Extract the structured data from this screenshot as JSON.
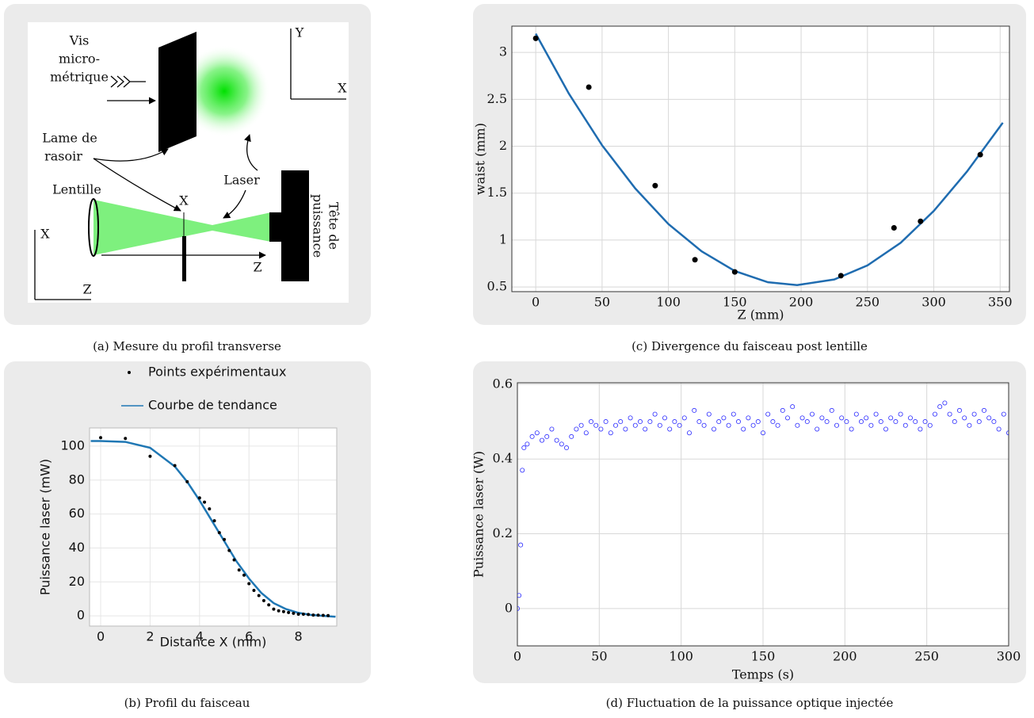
{
  "figure": {
    "captions": [
      "(a) Mesure du profil transverse",
      "(c) Divergence du faisceau post lentille",
      "(b) Profil du faisceau",
      "(d) Fluctuation de la puissance optique injectée"
    ],
    "diagram": {
      "screw": [
        "Vis",
        "micro-",
        "métrique"
      ],
      "axes_top": [
        "Y",
        "X"
      ],
      "razor": [
        "Lame de",
        "rasoir"
      ],
      "laser": "Laser",
      "lens": "Lentille",
      "razor_position": "X",
      "power_head": [
        "Tête de",
        "puissance"
      ],
      "axes_bottom": [
        "X",
        "Z"
      ],
      "beam_axis": "Z"
    }
  },
  "chart_data": [
    {
      "type": "scatter",
      "xlabel": "Z (mm)",
      "ylabel": "waist (mm)",
      "grid": true,
      "xlim": [
        -18,
        357
      ],
      "ylim": [
        0.45,
        3.28
      ],
      "xticks": [
        0,
        50,
        100,
        150,
        200,
        250,
        300,
        350
      ],
      "yticks": [
        0.5,
        1,
        1.5,
        2,
        2.5,
        3
      ],
      "series": [
        {
          "type": "scatter",
          "marker": "filled",
          "color": "#000000",
          "x": [
            0,
            40,
            90,
            120,
            150,
            230,
            270,
            290,
            335
          ],
          "values": [
            3.15,
            2.63,
            1.58,
            0.79,
            0.66,
            0.62,
            1.13,
            1.2,
            1.91
          ]
        },
        {
          "type": "line",
          "color": "#1f6cb0",
          "x": [
            0,
            25,
            50,
            75,
            100,
            125,
            150,
            175,
            197,
            225,
            250,
            275,
            300,
            325,
            352
          ],
          "values": [
            3.2,
            2.56,
            2.01,
            1.55,
            1.17,
            0.88,
            0.67,
            0.55,
            0.52,
            0.58,
            0.73,
            0.97,
            1.31,
            1.73,
            2.25
          ]
        }
      ]
    },
    {
      "type": "scatter",
      "xlabel": "Distance X (mm)",
      "ylabel": "Puissance laser (mW)",
      "grid": true,
      "legend": "top",
      "xlim": [
        -0.45,
        9.55
      ],
      "ylim": [
        -6,
        110.7
      ],
      "xticks": [
        0,
        2,
        4,
        6,
        8
      ],
      "yticks": [
        0,
        20,
        40,
        60,
        80,
        100
      ],
      "series": [
        {
          "type": "scatter",
          "name": "Points expérimentaux",
          "marker": "filled",
          "color": "#000000",
          "x": [
            0,
            1,
            2,
            3,
            3.5,
            4,
            4.2,
            4.4,
            4.6,
            4.8,
            5,
            5.2,
            5.4,
            5.6,
            5.8,
            6,
            6.2,
            6.4,
            6.6,
            6.8,
            7,
            7.2,
            7.4,
            7.6,
            7.8,
            8,
            8.2,
            8.4,
            8.6,
            8.8,
            9,
            9.2
          ],
          "values": [
            105,
            104.5,
            94,
            88.5,
            79,
            69.5,
            67,
            63,
            56,
            49,
            45,
            38.5,
            33,
            27,
            24,
            19,
            15,
            12,
            9,
            6.5,
            4,
            3,
            2.5,
            2,
            1.5,
            1,
            1,
            0.8,
            0.5,
            0.4,
            0.3,
            0.2
          ]
        },
        {
          "type": "line",
          "name": "Courbe de tendance",
          "color": "#1f77b4",
          "x": [
            -0.4,
            0,
            1,
            2,
            3,
            3.5,
            4,
            4.5,
            5,
            5.5,
            6,
            6.5,
            7,
            7.5,
            8,
            8.5,
            9,
            9.5
          ],
          "values": [
            103,
            103,
            102.5,
            99,
            88,
            79,
            68,
            56,
            44,
            32,
            22,
            13.5,
            7.5,
            4,
            1.8,
            0.6,
            0,
            -0.5
          ]
        }
      ]
    },
    {
      "type": "scatter",
      "xlabel": "Temps (s)",
      "ylabel": "Puissance laser (W)",
      "grid": true,
      "xlim": [
        0,
        300
      ],
      "ylim": [
        -0.1,
        0.604
      ],
      "xticks": [
        0,
        50,
        100,
        150,
        200,
        250,
        300
      ],
      "yticks": [
        0,
        0.2,
        0.4,
        0.6
      ],
      "series": [
        {
          "type": "scatter",
          "marker": "open",
          "color": "#2a2aff",
          "x": [
            0,
            1,
            2,
            3,
            4,
            6,
            9,
            12,
            15,
            18,
            21,
            24,
            27,
            30,
            33,
            36,
            39,
            42,
            45,
            48,
            51,
            54,
            57,
            60,
            63,
            66,
            69,
            72,
            75,
            78,
            81,
            84,
            87,
            90,
            93,
            96,
            99,
            102,
            105,
            108,
            111,
            114,
            117,
            120,
            123,
            126,
            129,
            132,
            135,
            138,
            141,
            144,
            147,
            150,
            153,
            156,
            159,
            162,
            165,
            168,
            171,
            174,
            177,
            180,
            183,
            186,
            189,
            192,
            195,
            198,
            201,
            204,
            207,
            210,
            213,
            216,
            219,
            222,
            225,
            228,
            231,
            234,
            237,
            240,
            243,
            246,
            249,
            252,
            255,
            258,
            261,
            264,
            267,
            270,
            273,
            276,
            279,
            282,
            285,
            288,
            291,
            294,
            297,
            300
          ],
          "values": [
            0.0,
            0.035,
            0.17,
            0.37,
            0.43,
            0.44,
            0.46,
            0.47,
            0.45,
            0.46,
            0.48,
            0.45,
            0.44,
            0.43,
            0.46,
            0.48,
            0.49,
            0.47,
            0.5,
            0.49,
            0.48,
            0.5,
            0.47,
            0.49,
            0.5,
            0.48,
            0.51,
            0.49,
            0.5,
            0.48,
            0.5,
            0.52,
            0.49,
            0.51,
            0.48,
            0.5,
            0.49,
            0.51,
            0.47,
            0.53,
            0.5,
            0.49,
            0.52,
            0.48,
            0.5,
            0.51,
            0.49,
            0.52,
            0.5,
            0.48,
            0.51,
            0.49,
            0.5,
            0.47,
            0.52,
            0.5,
            0.49,
            0.53,
            0.51,
            0.54,
            0.49,
            0.51,
            0.5,
            0.52,
            0.48,
            0.51,
            0.5,
            0.53,
            0.49,
            0.51,
            0.5,
            0.48,
            0.52,
            0.5,
            0.51,
            0.49,
            0.52,
            0.5,
            0.48,
            0.51,
            0.5,
            0.52,
            0.49,
            0.51,
            0.5,
            0.48,
            0.5,
            0.49,
            0.52,
            0.54,
            0.55,
            0.52,
            0.5,
            0.53,
            0.51,
            0.49,
            0.52,
            0.5,
            0.53,
            0.51,
            0.5,
            0.48,
            0.52,
            0.47
          ]
        }
      ]
    }
  ]
}
